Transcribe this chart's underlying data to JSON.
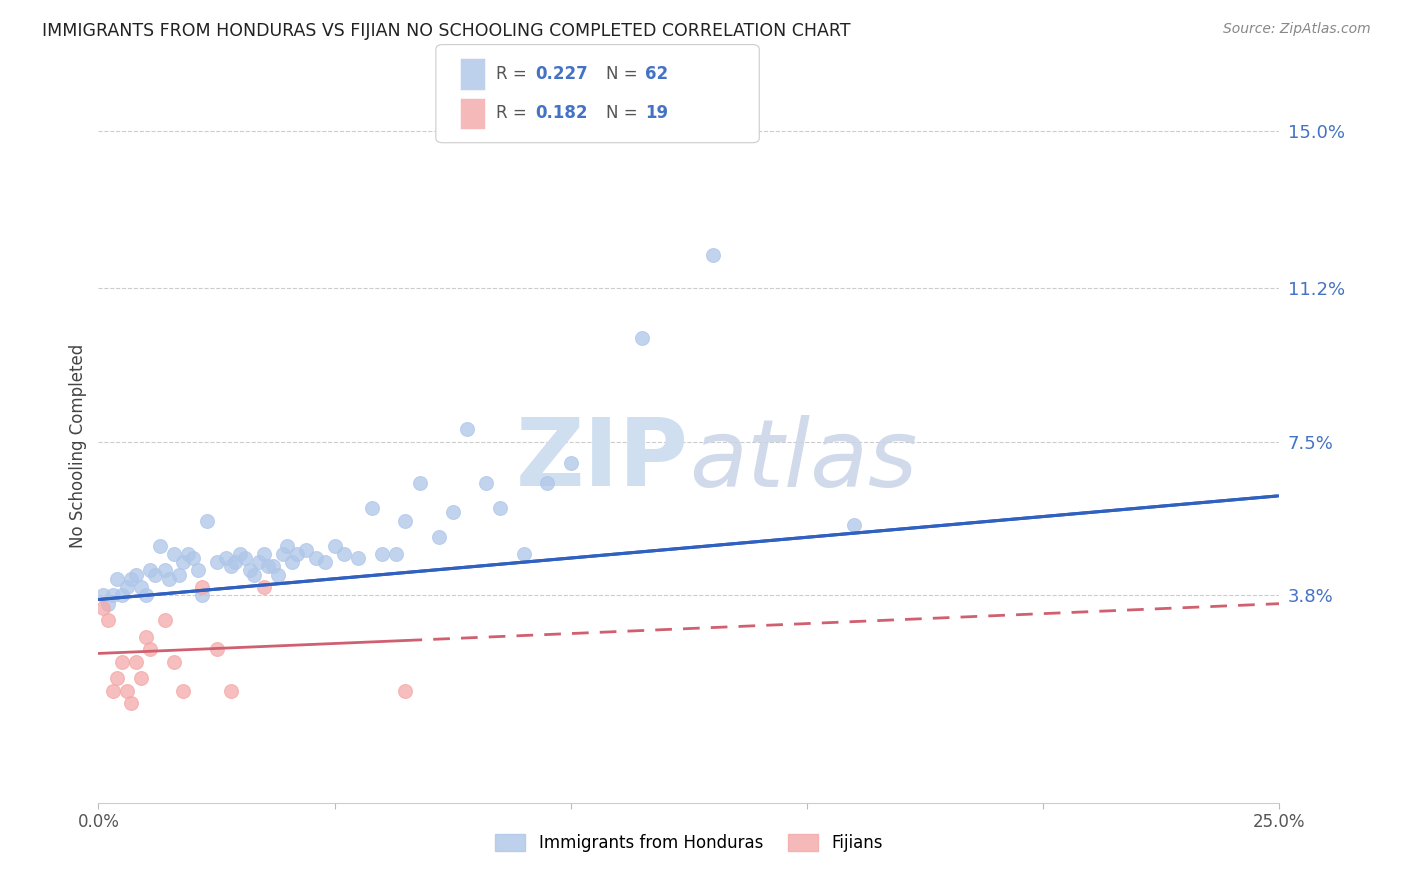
{
  "title": "IMMIGRANTS FROM HONDURAS VS FIJIAN NO SCHOOLING COMPLETED CORRELATION CHART",
  "source": "Source: ZipAtlas.com",
  "ylabel_label": "No Schooling Completed",
  "xlim": [
    0.0,
    0.25
  ],
  "ylim": [
    -0.012,
    0.16
  ],
  "ytick_labels_right": [
    "15.0%",
    "11.2%",
    "7.5%",
    "3.8%"
  ],
  "ytick_vals_right": [
    0.15,
    0.112,
    0.075,
    0.038
  ],
  "blue_color": "#aec6e8",
  "pink_color": "#f4a8a8",
  "line_blue": "#3060c0",
  "line_pink": "#d06070",
  "watermark_color": "#d0dff0",
  "blue_line_x0": 0.0,
  "blue_line_y0": 0.037,
  "blue_line_x1": 0.25,
  "blue_line_y1": 0.062,
  "pink_line_x0": 0.0,
  "pink_line_y0": 0.024,
  "pink_line_x1": 0.25,
  "pink_line_y1": 0.036,
  "pink_line_dashed_x0": 0.065,
  "pink_line_dashed_x1": 0.25,
  "honduras_x": [
    0.001,
    0.002,
    0.003,
    0.004,
    0.005,
    0.006,
    0.007,
    0.008,
    0.009,
    0.01,
    0.011,
    0.012,
    0.013,
    0.014,
    0.015,
    0.016,
    0.017,
    0.018,
    0.019,
    0.02,
    0.021,
    0.022,
    0.023,
    0.025,
    0.027,
    0.028,
    0.029,
    0.03,
    0.031,
    0.032,
    0.033,
    0.034,
    0.035,
    0.036,
    0.037,
    0.038,
    0.039,
    0.04,
    0.041,
    0.042,
    0.044,
    0.046,
    0.048,
    0.05,
    0.052,
    0.055,
    0.058,
    0.06,
    0.063,
    0.065,
    0.068,
    0.072,
    0.075,
    0.078,
    0.082,
    0.085,
    0.09,
    0.095,
    0.1,
    0.115,
    0.13,
    0.16
  ],
  "honduras_y": [
    0.038,
    0.036,
    0.038,
    0.042,
    0.038,
    0.04,
    0.042,
    0.043,
    0.04,
    0.038,
    0.044,
    0.043,
    0.05,
    0.044,
    0.042,
    0.048,
    0.043,
    0.046,
    0.048,
    0.047,
    0.044,
    0.038,
    0.056,
    0.046,
    0.047,
    0.045,
    0.046,
    0.048,
    0.047,
    0.044,
    0.043,
    0.046,
    0.048,
    0.045,
    0.045,
    0.043,
    0.048,
    0.05,
    0.046,
    0.048,
    0.049,
    0.047,
    0.046,
    0.05,
    0.048,
    0.047,
    0.059,
    0.048,
    0.048,
    0.056,
    0.065,
    0.052,
    0.058,
    0.078,
    0.065,
    0.059,
    0.048,
    0.065,
    0.07,
    0.1,
    0.12,
    0.055
  ],
  "fijian_x": [
    0.001,
    0.002,
    0.003,
    0.004,
    0.005,
    0.006,
    0.007,
    0.008,
    0.009,
    0.01,
    0.011,
    0.014,
    0.016,
    0.018,
    0.022,
    0.025,
    0.028,
    0.035,
    0.065
  ],
  "fijian_y": [
    0.035,
    0.032,
    0.015,
    0.018,
    0.022,
    0.015,
    0.012,
    0.022,
    0.018,
    0.028,
    0.025,
    0.032,
    0.022,
    0.015,
    0.04,
    0.025,
    0.015,
    0.04,
    0.015
  ]
}
